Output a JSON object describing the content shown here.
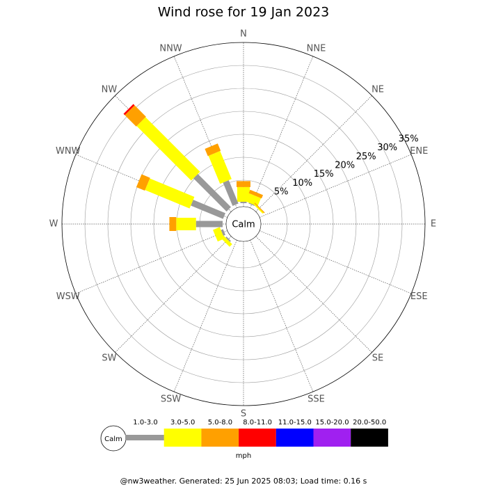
{
  "chart_data": {
    "type": "windrose",
    "title": "Wind rose for 19 Jan 2023",
    "categories": [
      "N",
      "NNE",
      "NE",
      "ENE",
      "E",
      "ESE",
      "SE",
      "SSE",
      "S",
      "SSW",
      "SW",
      "WSW",
      "W",
      "WNW",
      "NW",
      "NNW"
    ],
    "center_label": "Calm",
    "unit_label": "mph",
    "footer": "@nw3weather. Generated: 25 Jun 2025 08:03; Load time: 0.16 s",
    "rlim": [
      0,
      35
    ],
    "rticks": [
      {
        "value": 5,
        "label": "5%"
      },
      {
        "value": 10,
        "label": "10%"
      },
      {
        "value": 15,
        "label": "15%"
      },
      {
        "value": 20,
        "label": "20%"
      },
      {
        "value": 25,
        "label": "25%"
      },
      {
        "value": 30,
        "label": "30%"
      },
      {
        "value": 35,
        "label": "35%"
      }
    ],
    "series": [
      {
        "name": "1.0-3.0",
        "color": "#999999",
        "values": [
          0.3,
          0.2,
          0,
          0,
          0,
          0,
          0,
          0,
          0,
          0,
          0.3,
          0.5,
          5.8,
          7.6,
          10.2,
          5.5
        ]
      },
      {
        "name": "3.0-5.0",
        "color": "#ffff00",
        "values": [
          3.2,
          1.9,
          0.3,
          0,
          0,
          0,
          0,
          0,
          0,
          0,
          0.8,
          1.6,
          4.3,
          10.5,
          16.8,
          6.6
        ]
      },
      {
        "name": "5.0-8.0",
        "color": "#ffa000",
        "values": [
          1.3,
          0.8,
          0.2,
          0,
          0,
          0,
          0,
          0,
          0,
          0,
          0,
          0,
          1.5,
          2.0,
          3.5,
          1.7
        ]
      },
      {
        "name": "8.0-11.0",
        "color": "#ff0000",
        "values": [
          0,
          0,
          0,
          0,
          0,
          0,
          0,
          0,
          0,
          0,
          0,
          0,
          0,
          0,
          0.4,
          0
        ]
      },
      {
        "name": "11.0-15.0",
        "color": "#0000ff",
        "values": [
          0,
          0,
          0,
          0,
          0,
          0,
          0,
          0,
          0,
          0,
          0,
          0,
          0,
          0,
          0,
          0
        ]
      },
      {
        "name": "15.0-20.0",
        "color": "#a020f0",
        "values": [
          0,
          0,
          0,
          0,
          0,
          0,
          0,
          0,
          0,
          0,
          0,
          0,
          0,
          0,
          0,
          0
        ]
      },
      {
        "name": "20.0-50.0",
        "color": "#000000",
        "values": [
          0,
          0,
          0,
          0,
          0,
          0,
          0,
          0,
          0,
          0,
          0,
          0,
          0,
          0,
          0,
          0
        ]
      }
    ]
  }
}
